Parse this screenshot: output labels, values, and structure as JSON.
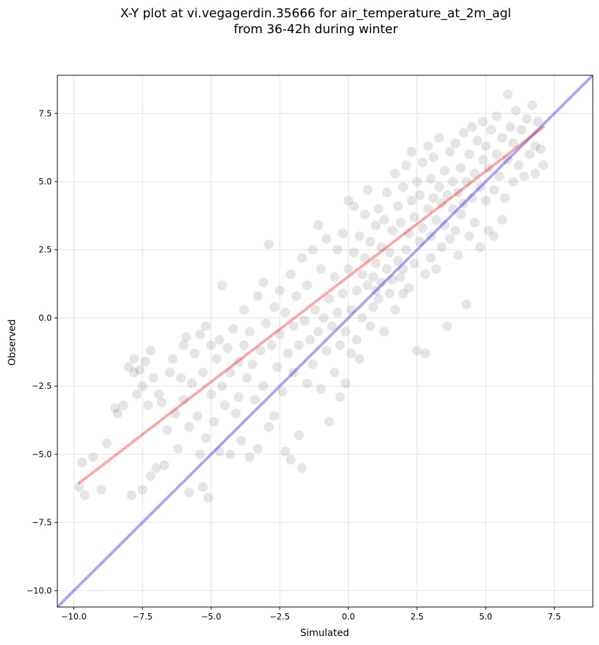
{
  "chart_data": {
    "type": "scatter",
    "title_lines": [
      "X-Y plot at vi.vegagerdin.35666 for air_temperature_at_2m_agl",
      "from 36-42h during winter"
    ],
    "xlabel": "Simulated",
    "ylabel": "Observed",
    "xlim": [
      -10.6,
      8.9
    ],
    "ylim": [
      -10.6,
      8.9
    ],
    "xticks": [
      -10.0,
      -7.5,
      -5.0,
      -2.5,
      0.0,
      2.5,
      5.0,
      7.5
    ],
    "xtick_labels": [
      "−10.0",
      "−7.5",
      "−5.0",
      "−2.5",
      "0.0",
      "2.5",
      "5.0",
      "7.5"
    ],
    "yticks": [
      -10.0,
      -7.5,
      -5.0,
      -2.5,
      0.0,
      2.5,
      5.0,
      7.5
    ],
    "ytick_labels": [
      "−10.0",
      "−7.5",
      "−5.0",
      "−2.5",
      "0.0",
      "2.5",
      "5.0",
      "7.5"
    ],
    "grid": true,
    "point_color": "#000000",
    "fit_line": {
      "color": "#ff0000",
      "x": [
        -9.8,
        7.1
      ],
      "y": [
        -6.05,
        7.0
      ]
    },
    "identity_line": {
      "color": "#0000ff",
      "x": [
        -10.6,
        8.9
      ],
      "y": [
        -10.6,
        8.9
      ]
    },
    "points": [
      [
        -9.8,
        -6.2
      ],
      [
        -9.6,
        -6.5
      ],
      [
        -9.7,
        -5.3
      ],
      [
        -9.3,
        -5.1
      ],
      [
        -9.0,
        -6.3
      ],
      [
        -8.8,
        -4.6
      ],
      [
        -8.5,
        -3.3
      ],
      [
        -8.4,
        -3.5
      ],
      [
        -8.2,
        -3.2
      ],
      [
        -8.0,
        -1.8
      ],
      [
        -7.9,
        -6.5
      ],
      [
        -7.8,
        -2.0
      ],
      [
        -7.8,
        -1.5
      ],
      [
        -7.7,
        -2.8
      ],
      [
        -7.6,
        -1.9
      ],
      [
        -7.5,
        -6.3
      ],
      [
        -7.5,
        -2.5
      ],
      [
        -7.4,
        -1.6
      ],
      [
        -7.3,
        -3.2
      ],
      [
        -7.2,
        -5.8
      ],
      [
        -7.2,
        -1.2
      ],
      [
        -7.1,
        -2.2
      ],
      [
        -7.0,
        -5.5
      ],
      [
        -6.9,
        -2.8
      ],
      [
        -6.8,
        -3.1
      ],
      [
        -6.7,
        -5.4
      ],
      [
        -6.6,
        -4.1
      ],
      [
        -6.5,
        -2.0
      ],
      [
        -6.4,
        -1.5
      ],
      [
        -6.3,
        -3.5
      ],
      [
        -6.2,
        -4.8
      ],
      [
        -6.1,
        -2.2
      ],
      [
        -6.0,
        -1.0
      ],
      [
        -6.0,
        -3.0
      ],
      [
        -5.9,
        -0.7
      ],
      [
        -5.8,
        -4.0
      ],
      [
        -5.8,
        -6.4
      ],
      [
        -5.7,
        -2.4
      ],
      [
        -5.6,
        -1.3
      ],
      [
        -5.5,
        -3.6
      ],
      [
        -5.4,
        -5.0
      ],
      [
        -5.4,
        -0.6
      ],
      [
        -5.3,
        -2.0
      ],
      [
        -5.3,
        -6.2
      ],
      [
        -5.2,
        -4.4
      ],
      [
        -5.2,
        -0.3
      ],
      [
        -5.1,
        -6.6
      ],
      [
        -5.0,
        -1.0
      ],
      [
        -5.0,
        -2.8
      ],
      [
        -4.9,
        -3.8
      ],
      [
        -4.8,
        -1.5
      ],
      [
        -4.7,
        -4.9
      ],
      [
        -4.7,
        -0.8
      ],
      [
        -4.6,
        -2.5
      ],
      [
        -4.6,
        1.2
      ],
      [
        -4.5,
        -3.2
      ],
      [
        -4.4,
        -1.1
      ],
      [
        -4.3,
        -5.0
      ],
      [
        -4.3,
        -2.0
      ],
      [
        -4.2,
        -0.4
      ],
      [
        -4.1,
        -3.5
      ],
      [
        -4.0,
        -1.6
      ],
      [
        -4.0,
        -2.9
      ],
      [
        -3.9,
        -4.5
      ],
      [
        -3.8,
        0.3
      ],
      [
        -3.8,
        -1.0
      ],
      [
        -3.7,
        -2.2
      ],
      [
        -3.6,
        -5.1
      ],
      [
        -3.6,
        -0.5
      ],
      [
        -3.5,
        -1.7
      ],
      [
        -3.4,
        -3.0
      ],
      [
        -3.3,
        0.8
      ],
      [
        -3.3,
        -4.8
      ],
      [
        -3.2,
        -1.2
      ],
      [
        -3.1,
        1.3
      ],
      [
        -3.1,
        -2.5
      ],
      [
        -3.0,
        -0.2
      ],
      [
        -2.9,
        -4.0
      ],
      [
        -2.9,
        2.7
      ],
      [
        -2.8,
        -1.0
      ],
      [
        -2.7,
        0.4
      ],
      [
        -2.7,
        -3.6
      ],
      [
        -2.6,
        -1.8
      ],
      [
        -2.5,
        1.0
      ],
      [
        -2.5,
        -0.6
      ],
      [
        -2.4,
        -2.7
      ],
      [
        -2.3,
        -4.9
      ],
      [
        -2.3,
        0.2
      ],
      [
        -2.2,
        -1.3
      ],
      [
        -2.1,
        -5.2
      ],
      [
        -2.1,
        1.6
      ],
      [
        -2.0,
        -0.3
      ],
      [
        -2.0,
        -2.0
      ],
      [
        -1.9,
        0.8
      ],
      [
        -1.8,
        -4.3
      ],
      [
        -1.8,
        -1.0
      ],
      [
        -1.7,
        -5.5
      ],
      [
        -1.7,
        2.2
      ],
      [
        -1.6,
        -0.1
      ],
      [
        -1.5,
        -2.4
      ],
      [
        -1.5,
        1.2
      ],
      [
        -1.4,
        -0.8
      ],
      [
        -1.3,
        2.5
      ],
      [
        -1.3,
        -1.7
      ],
      [
        -1.2,
        0.3
      ],
      [
        -1.1,
        3.4
      ],
      [
        -1.1,
        -0.5
      ],
      [
        -1.0,
        -2.6
      ],
      [
        -1.0,
        1.8
      ],
      [
        -0.9,
        0.0
      ],
      [
        -0.8,
        -1.2
      ],
      [
        -0.8,
        2.9
      ],
      [
        -0.7,
        0.7
      ],
      [
        -0.7,
        -3.8
      ],
      [
        -0.6,
        -0.3
      ],
      [
        -0.5,
        1.5
      ],
      [
        -0.5,
        -2.0
      ],
      [
        -0.4,
        2.5
      ],
      [
        -0.4,
        0.2
      ],
      [
        -0.3,
        -1.0
      ],
      [
        -0.3,
        -2.9
      ],
      [
        -0.2,
        3.1
      ],
      [
        -0.2,
        0.9
      ],
      [
        -0.1,
        -0.5
      ],
      [
        -0.1,
        -2.4
      ],
      [
        0.0,
        1.8
      ],
      [
        0.0,
        4.3
      ],
      [
        0.1,
        0.3
      ],
      [
        0.1,
        -1.3
      ],
      [
        0.2,
        2.4
      ],
      [
        0.2,
        4.1
      ],
      [
        0.3,
        1.0
      ],
      [
        0.3,
        -0.8
      ],
      [
        0.4,
        3.0
      ],
      [
        0.4,
        -1.5
      ],
      [
        0.5,
        1.6
      ],
      [
        0.5,
        0.0
      ],
      [
        0.6,
        3.8
      ],
      [
        0.6,
        2.2
      ],
      [
        0.7,
        1.2
      ],
      [
        0.7,
        4.7
      ],
      [
        0.8,
        -0.3
      ],
      [
        0.8,
        2.8
      ],
      [
        0.9,
        1.5
      ],
      [
        0.9,
        0.4
      ],
      [
        1.0,
        3.4
      ],
      [
        1.0,
        2.0
      ],
      [
        1.0,
        1.0
      ],
      [
        1.1,
        4.0
      ],
      [
        1.1,
        0.7
      ],
      [
        1.2,
        2.6
      ],
      [
        1.2,
        1.3
      ],
      [
        1.3,
        -0.5
      ],
      [
        1.3,
        3.6
      ],
      [
        1.4,
        1.8
      ],
      [
        1.4,
        4.6
      ],
      [
        1.5,
        0.9
      ],
      [
        1.5,
        2.4
      ],
      [
        1.6,
        1.4
      ],
      [
        1.6,
        3.2
      ],
      [
        1.7,
        0.3
      ],
      [
        1.7,
        5.3
      ],
      [
        1.8,
        2.1
      ],
      [
        1.8,
        4.1
      ],
      [
        1.9,
        1.5
      ],
      [
        1.9,
        3.5
      ],
      [
        2.0,
        1.8
      ],
      [
        2.0,
        0.9
      ],
      [
        2.0,
        4.8
      ],
      [
        2.1,
        2.5
      ],
      [
        2.1,
        5.6
      ],
      [
        2.2,
        3.1
      ],
      [
        2.2,
        1.1
      ],
      [
        2.3,
        4.3
      ],
      [
        2.3,
        6.1
      ],
      [
        2.4,
        2.0
      ],
      [
        2.4,
        3.7
      ],
      [
        2.5,
        5.0
      ],
      [
        2.5,
        -1.2
      ],
      [
        2.6,
        2.8
      ],
      [
        2.6,
        4.5
      ],
      [
        2.7,
        3.3
      ],
      [
        2.7,
        5.7
      ],
      [
        2.8,
        -1.3
      ],
      [
        2.8,
        1.6
      ],
      [
        2.9,
        4.0
      ],
      [
        2.9,
        6.3
      ],
      [
        3.0,
        3.0
      ],
      [
        3.0,
        5.1
      ],
      [
        3.0,
        2.2
      ],
      [
        3.1,
        4.4
      ],
      [
        3.1,
        5.9
      ],
      [
        3.2,
        3.6
      ],
      [
        3.2,
        1.8
      ],
      [
        3.3,
        4.8
      ],
      [
        3.3,
        6.6
      ],
      [
        3.4,
        2.6
      ],
      [
        3.4,
        4.2
      ],
      [
        3.5,
        5.4
      ],
      [
        3.5,
        3.4
      ],
      [
        3.6,
        4.5
      ],
      [
        3.6,
        -0.3
      ],
      [
        3.7,
        6.1
      ],
      [
        3.7,
        2.9
      ],
      [
        3.8,
        4.0
      ],
      [
        3.8,
        5.0
      ],
      [
        3.9,
        3.2
      ],
      [
        3.9,
        6.4
      ],
      [
        4.0,
        4.6
      ],
      [
        4.0,
        2.3
      ],
      [
        4.1,
        5.5
      ],
      [
        4.1,
        3.8
      ],
      [
        4.2,
        6.8
      ],
      [
        4.2,
        4.2
      ],
      [
        4.3,
        0.5
      ],
      [
        4.3,
        5.0
      ],
      [
        4.4,
        3.0
      ],
      [
        4.4,
        6.0
      ],
      [
        4.5,
        4.4
      ],
      [
        4.5,
        7.0
      ],
      [
        4.6,
        5.3
      ],
      [
        4.6,
        3.5
      ],
      [
        4.7,
        6.5
      ],
      [
        4.8,
        4.8
      ],
      [
        4.8,
        2.6
      ],
      [
        4.9,
        5.8
      ],
      [
        4.9,
        7.2
      ],
      [
        5.0,
        4.3
      ],
      [
        5.0,
        6.3
      ],
      [
        5.1,
        3.2
      ],
      [
        5.1,
        5.5
      ],
      [
        5.2,
        6.9
      ],
      [
        5.3,
        4.7
      ],
      [
        5.3,
        3.0
      ],
      [
        5.4,
        6.0
      ],
      [
        5.4,
        7.4
      ],
      [
        5.5,
        5.2
      ],
      [
        5.6,
        3.6
      ],
      [
        5.6,
        6.6
      ],
      [
        5.7,
        4.4
      ],
      [
        5.8,
        5.8
      ],
      [
        5.8,
        8.2
      ],
      [
        5.9,
        7.0
      ],
      [
        6.0,
        5.0
      ],
      [
        6.0,
        6.4
      ],
      [
        6.1,
        7.6
      ],
      [
        6.2,
        5.6
      ],
      [
        6.3,
        6.9
      ],
      [
        6.4,
        5.2
      ],
      [
        6.5,
        7.3
      ],
      [
        6.6,
        6.0
      ],
      [
        6.7,
        7.8
      ],
      [
        6.8,
        5.3
      ],
      [
        6.8,
        6.3
      ],
      [
        6.9,
        7.2
      ],
      [
        7.0,
        6.2
      ],
      [
        7.1,
        5.6
      ]
    ]
  }
}
